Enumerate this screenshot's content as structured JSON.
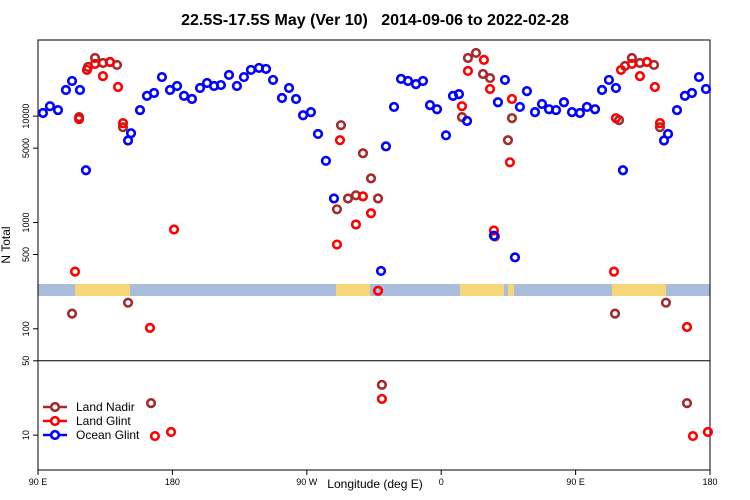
{
  "chart_data": {
    "type": "scatter",
    "title": "22.5S-17.5S May (Ver 10)   2014-09-06 to 2022-02-28",
    "x_label": "Longitude (deg E)",
    "y_label": "N Total",
    "log_y": true,
    "panel_break": 50,
    "legend": "lower left",
    "xlim": [
      90,
      540
    ],
    "xticks": [
      {
        "value": 90,
        "label": "90 E"
      },
      180,
      {
        "value": 270,
        "label": "90 W"
      },
      {
        "value": 360,
        "label": "0"
      },
      {
        "value": 450,
        "label": "90 E"
      },
      {
        "value": 540,
        "label": "180"
      }
    ],
    "ylim": [
      4.7,
      52000
    ],
    "yticks": [
      10,
      50,
      100,
      500,
      1000,
      5000,
      10000
    ],
    "series": [
      {
        "name": "Land Nadir",
        "color": "#a52a2a",
        "x": [
          112.8,
          117.5,
          123.5,
          128.2,
          133.5,
          138.2,
          142.9,
          146.9,
          150.3,
          165.7,
          290.2,
          292.9,
          297.6,
          302.9,
          307.6,
          313,
          317.7,
          320.3,
          373.9,
          377.9,
          383.3,
          388,
          392.7,
          396,
          404.7,
          407.4,
          476.4,
          479.1,
          483.1,
          487.7,
          493.1,
          497.8,
          502.5,
          506.5,
          510.5,
          524.6
        ],
        "values": [
          139,
          9790,
          29000,
          35200,
          31600,
          32300,
          30300,
          7870,
          176,
          20,
          1330,
          8220,
          1680,
          1800,
          4480,
          2600,
          1680,
          29.7,
          9790,
          35200,
          39300,
          24900,
          22800,
          738,
          5940,
          9570,
          139,
          9170,
          29600,
          35200,
          31600,
          32300,
          30300,
          7870,
          176,
          20
        ]
      },
      {
        "name": "Land Glint",
        "color": "#ff0000",
        "x": [
          114.8,
          117.5,
          122.8,
          128.2,
          133.5,
          138.2,
          143.6,
          146.9,
          165,
          168.3,
          179.1,
          181.1,
          290.2,
          292.2,
          302.9,
          307.6,
          313,
          317.7,
          320.3,
          373.9,
          377.9,
          388.6,
          392.7,
          395.3,
          406,
          407.4,
          475.7,
          477,
          480.4,
          487.7,
          493.1,
          497.8,
          503.1,
          506.5,
          524.6,
          528.6,
          538.6
        ],
        "values": [
          345,
          9370,
          27200,
          30970,
          23800,
          32300,
          18800,
          8590,
          102,
          9.8,
          10.7,
          859,
          620,
          5940,
          957,
          1760,
          1220,
          228,
          21.9,
          12400,
          26600,
          33800,
          18000,
          840,
          3680,
          14500,
          345,
          9570,
          27200,
          30970,
          23800,
          32300,
          18800,
          8590,
          104,
          9.8,
          10.7
        ]
      },
      {
        "name": "Ocean Glint",
        "color": "#0000ff",
        "x": [
          93.3,
          98,
          103.4,
          108.7,
          112.8,
          118.1,
          122.1,
          150.3,
          152.3,
          158.3,
          163,
          167.7,
          173,
          178.4,
          183.1,
          187.8,
          193.1,
          198.5,
          203.2,
          207.9,
          212.5,
          217.9,
          223.2,
          227.9,
          232.6,
          238,
          242.7,
          247.4,
          253.4,
          258.1,
          262.8,
          267.5,
          272.8,
          277.5,
          282.8,
          288.2,
          319.7,
          323,
          328.4,
          333.1,
          337.8,
          343.1,
          347.8,
          352.5,
          357.2,
          363.2,
          367.9,
          371.9,
          377.3,
          395.3,
          398,
          402.7,
          409.4,
          412.7,
          417.4,
          422.8,
          427.5,
          432.2,
          436.9,
          442.2,
          447.6,
          452.9,
          457.6,
          463,
          467.7,
          472.3,
          477,
          481.7,
          509.2,
          511.9,
          517.9,
          523.2,
          527.9,
          532.6,
          537.3
        ],
        "values": [
          10700,
          12400,
          11400,
          17600,
          21400,
          17600,
          3100,
          5900,
          6900,
          11400,
          15500,
          16500,
          23300,
          17600,
          19200,
          15500,
          14500,
          18400,
          20500,
          19200,
          19600,
          24400,
          19200,
          23300,
          27200,
          28400,
          27800,
          21900,
          14800,
          18400,
          14500,
          10200,
          10900,
          6800,
          3800,
          1680,
          350,
          5200,
          12200,
          22400,
          21400,
          20000,
          21400,
          12700,
          11600,
          6600,
          15500,
          16100,
          9000,
          750,
          13500,
          21900,
          470,
          12200,
          17200,
          10900,
          13000,
          11600,
          11400,
          13500,
          10900,
          10700,
          12200,
          11600,
          17600,
          21900,
          18400,
          3100,
          5900,
          6800,
          11400,
          15500,
          16500,
          23300,
          18000
        ]
      }
    ]
  }
}
